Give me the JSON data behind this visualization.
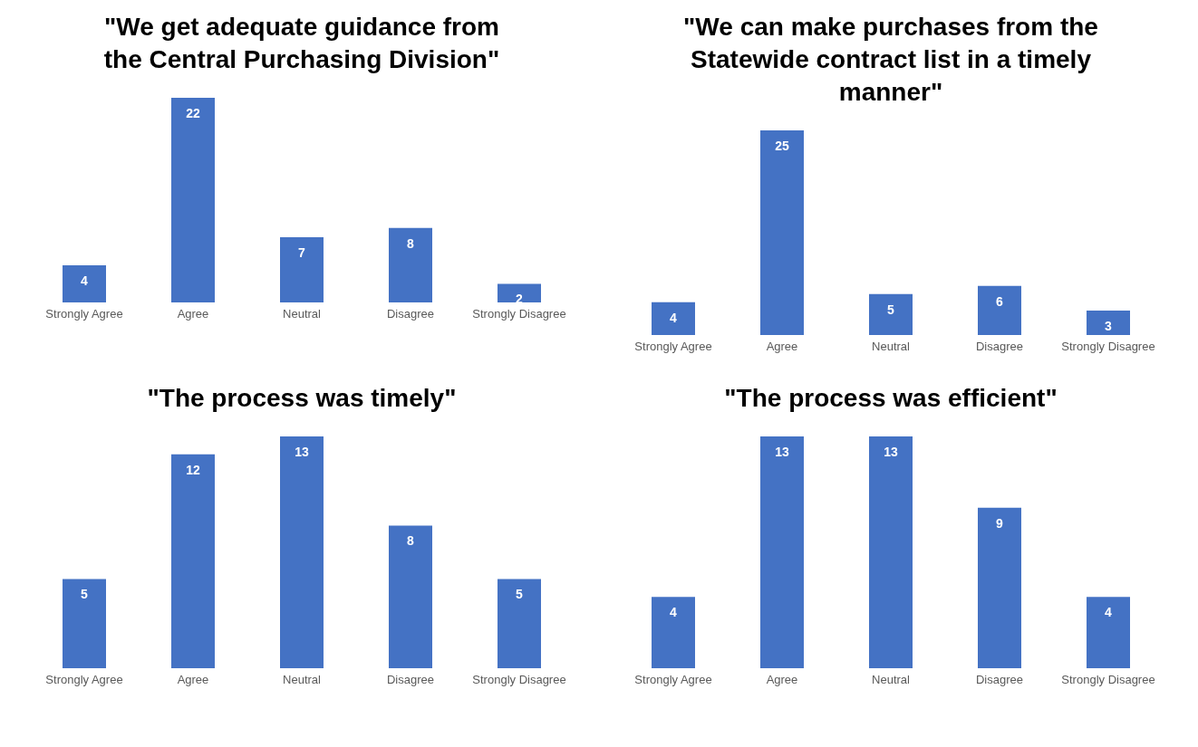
{
  "chart_data": [
    {
      "type": "bar",
      "title": "\"We get adequate guidance from the Central Purchasing Division\"",
      "categories": [
        "Strongly Agree",
        "Agree",
        "Neutral",
        "Disagree",
        "Strongly Disagree"
      ],
      "values": [
        4,
        22,
        7,
        8,
        2
      ],
      "color": "#4472c4",
      "data_labels": true
    },
    {
      "type": "bar",
      "title": "\"We can make purchases from the Statewide contract list in a timely manner\"",
      "categories": [
        "Strongly Agree",
        "Agree",
        "Neutral",
        "Disagree",
        "Strongly Disagree"
      ],
      "values": [
        4,
        25,
        5,
        6,
        3
      ],
      "color": "#4472c4",
      "data_labels": true
    },
    {
      "type": "bar",
      "title": "\"The process was timely\"",
      "categories": [
        "Strongly Agree",
        "Agree",
        "Neutral",
        "Disagree",
        "Strongly Disagree"
      ],
      "values": [
        5,
        12,
        13,
        8,
        5
      ],
      "color": "#4472c4",
      "data_labels": true
    },
    {
      "type": "bar",
      "title": "\"The process was efficient\"",
      "categories": [
        "Strongly Agree",
        "Agree",
        "Neutral",
        "Disagree",
        "Strongly Disagree"
      ],
      "values": [
        4,
        13,
        13,
        9,
        4
      ],
      "color": "#4472c4",
      "data_labels": true
    }
  ]
}
